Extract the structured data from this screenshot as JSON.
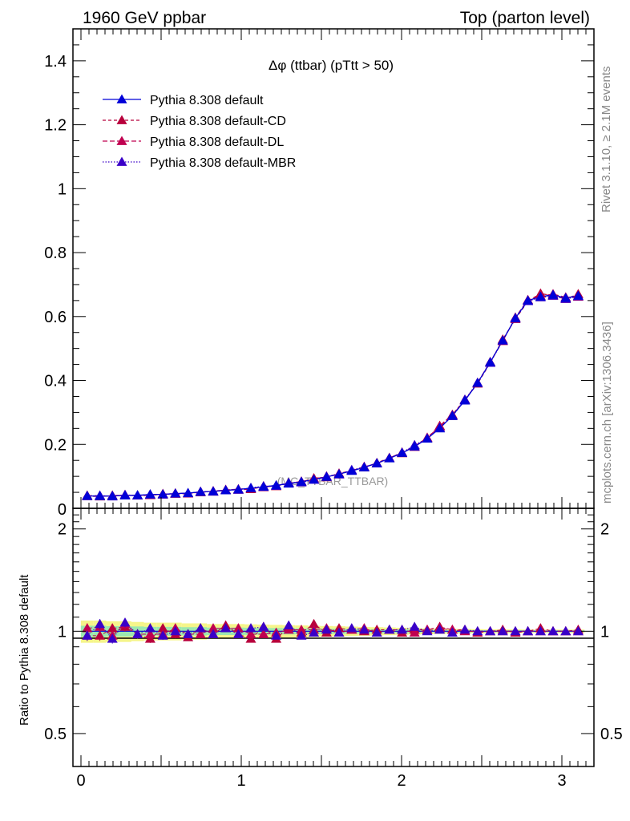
{
  "header": {
    "left": "1960 GeV ppbar",
    "right": "Top (parton level)"
  },
  "side": {
    "rivet": "Rivet 3.1.10, ≥ 2.1M events",
    "mcplots": "mcplots.cern.ch [arXiv:1306.3436]"
  },
  "chart_data": {
    "type": "line",
    "title": "Δφ (ttbar) (pTtt > 50)",
    "watermark": "(MC_TTBAR_TTBAR)",
    "xlabel": "",
    "ylabel": "",
    "xlim": [
      -0.05,
      3.2
    ],
    "ylim": [
      0,
      1.5
    ],
    "x_ticks": [
      "0",
      "1",
      "2",
      "3"
    ],
    "y_ticks": [
      "0.2",
      "0.4",
      "0.6",
      "0.8",
      "1",
      "1.2",
      "1.4"
    ],
    "y_zero_label": "0",
    "x": [
      0.039,
      0.118,
      0.196,
      0.275,
      0.353,
      0.432,
      0.511,
      0.589,
      0.668,
      0.746,
      0.825,
      0.903,
      0.982,
      1.06,
      1.139,
      1.218,
      1.296,
      1.375,
      1.453,
      1.532,
      1.61,
      1.689,
      1.767,
      1.846,
      1.924,
      2.003,
      2.081,
      2.16,
      2.238,
      2.317,
      2.395,
      2.474,
      2.553,
      2.631,
      2.71,
      2.788,
      2.867,
      2.945,
      3.024,
      3.102
    ],
    "series": [
      {
        "name": "Pythia 8.308 default",
        "color": "#0000d8",
        "dash": "",
        "values": [
          0.039,
          0.038,
          0.039,
          0.04,
          0.041,
          0.043,
          0.044,
          0.046,
          0.048,
          0.051,
          0.053,
          0.056,
          0.059,
          0.063,
          0.067,
          0.072,
          0.077,
          0.083,
          0.09,
          0.098,
          0.107,
          0.117,
          0.128,
          0.141,
          0.156,
          0.173,
          0.193,
          0.218,
          0.25,
          0.29,
          0.337,
          0.392,
          0.457,
          0.525,
          0.595,
          0.65,
          0.662,
          0.668,
          0.658,
          0.665
        ]
      },
      {
        "name": "Pythia 8.308 default-CD",
        "color": "#b8003c",
        "dash": "4,3",
        "values": [
          0.038,
          0.037,
          0.04,
          0.041,
          0.04,
          0.041,
          0.045,
          0.045,
          0.046,
          0.052,
          0.052,
          0.058,
          0.058,
          0.06,
          0.069,
          0.069,
          0.079,
          0.082,
          0.094,
          0.097,
          0.109,
          0.118,
          0.128,
          0.142,
          0.158,
          0.172,
          0.195,
          0.22,
          0.258,
          0.293,
          0.34,
          0.39,
          0.455,
          0.528,
          0.592,
          0.648,
          0.672,
          0.665,
          0.655,
          0.67
        ]
      },
      {
        "name": "Pythia 8.308 default-DL",
        "color": "#c00050",
        "dash": "6,3",
        "values": [
          0.04,
          0.039,
          0.038,
          0.042,
          0.04,
          0.042,
          0.043,
          0.047,
          0.047,
          0.05,
          0.054,
          0.057,
          0.06,
          0.062,
          0.066,
          0.071,
          0.078,
          0.084,
          0.091,
          0.1,
          0.106,
          0.118,
          0.13,
          0.14,
          0.157,
          0.175,
          0.192,
          0.221,
          0.255,
          0.292,
          0.338,
          0.393,
          0.458,
          0.523,
          0.597,
          0.652,
          0.664,
          0.67,
          0.66,
          0.662
        ]
      },
      {
        "name": "Pythia 8.308 default-MBR",
        "color": "#3a00c8",
        "dash": "1.5,2",
        "values": [
          0.038,
          0.04,
          0.037,
          0.042,
          0.04,
          0.044,
          0.043,
          0.046,
          0.047,
          0.052,
          0.052,
          0.057,
          0.058,
          0.064,
          0.069,
          0.07,
          0.08,
          0.081,
          0.089,
          0.099,
          0.106,
          0.12,
          0.129,
          0.14,
          0.157,
          0.174,
          0.198,
          0.218,
          0.252,
          0.288,
          0.34,
          0.393,
          0.455,
          0.525,
          0.594,
          0.648,
          0.66,
          0.665,
          0.655,
          0.663
        ]
      }
    ],
    "ratio": {
      "ylabel": "Ratio to Pythia 8.308 default",
      "ylim": [
        0.4,
        2.3
      ],
      "y_ticks": [
        "0.5",
        "1",
        "2"
      ],
      "band_outer": [
        0.075,
        0.075,
        0.07,
        0.07,
        0.065,
        0.06,
        0.06,
        0.06,
        0.055,
        0.055,
        0.05,
        0.05,
        0.05,
        0.048,
        0.046,
        0.044,
        0.042,
        0.04,
        0.038,
        0.036,
        0.034,
        0.032,
        0.03,
        0.028,
        0.026,
        0.024,
        0.022,
        0.02,
        0.018,
        0.016,
        0.015,
        0.014,
        0.013,
        0.012,
        0.012,
        0.011,
        0.011,
        0.011,
        0.011,
        0.011
      ],
      "band_inner": [
        0.038,
        0.038,
        0.035,
        0.035,
        0.033,
        0.03,
        0.03,
        0.03,
        0.028,
        0.028,
        0.025,
        0.025,
        0.025,
        0.024,
        0.023,
        0.022,
        0.021,
        0.02,
        0.019,
        0.018,
        0.017,
        0.016,
        0.015,
        0.014,
        0.013,
        0.012,
        0.011,
        0.01,
        0.009,
        0.008,
        0.008,
        0.007,
        0.007,
        0.006,
        0.006,
        0.006,
        0.006,
        0.006,
        0.006,
        0.006
      ],
      "series": [
        {
          "name": "Pythia 8.308 default-CD",
          "values": [
            0.97,
            0.97,
            1.02,
            1.03,
            0.98,
            0.95,
            1.02,
            0.98,
            0.96,
            1.02,
            0.98,
            1.04,
            0.98,
            0.95,
            1.03,
            0.95,
            1.03,
            0.99,
            1.05,
            0.99,
            1.02,
            1.01,
            1.0,
            1.01,
            1.01,
            0.99,
            1.01,
            1.01,
            1.03,
            1.01,
            1.01,
            0.99,
            1.0,
            1.01,
            0.99,
            1.0,
            1.02,
            1.0,
            1.0,
            1.01
          ]
        },
        {
          "name": "Pythia 8.308 default-DL",
          "values": [
            1.02,
            1.03,
            0.97,
            1.05,
            0.98,
            0.98,
            0.98,
            1.02,
            0.98,
            0.98,
            1.02,
            1.02,
            1.02,
            0.98,
            0.98,
            0.99,
            1.01,
            1.01,
            1.01,
            1.02,
            0.99,
            1.01,
            1.02,
            0.99,
            1.01,
            1.01,
            0.99,
            1.01,
            1.02,
            1.01,
            1.0,
            1.0,
            1.0,
            1.0,
            1.0,
            1.0,
            1.0,
            1.0,
            1.0,
            1.0
          ]
        },
        {
          "name": "Pythia 8.308 default-MBR",
          "values": [
            0.97,
            1.05,
            0.95,
            1.06,
            0.98,
            1.02,
            0.97,
            1.0,
            0.98,
            1.02,
            0.98,
            1.02,
            0.98,
            1.02,
            1.03,
            0.97,
            1.04,
            0.97,
            0.99,
            1.01,
            0.99,
            1.02,
            1.01,
            0.99,
            1.01,
            1.01,
            1.03,
            1.0,
            1.01,
            0.99,
            1.01,
            1.0,
            1.0,
            1.0,
            1.0,
            1.0,
            1.0,
            1.0,
            1.0,
            1.0
          ]
        }
      ]
    },
    "legend_position": "top-left",
    "grid": false
  }
}
